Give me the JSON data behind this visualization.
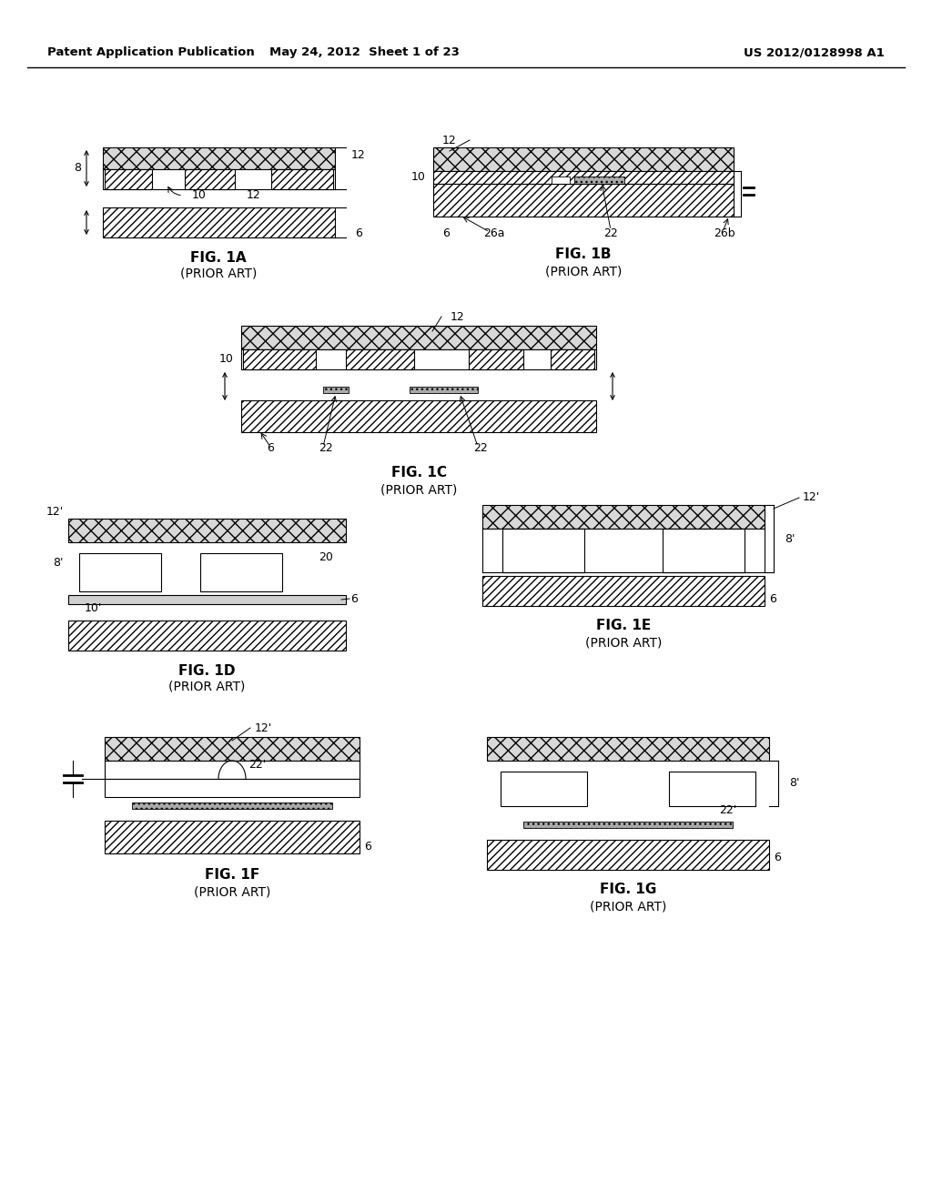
{
  "header_left": "Patent Application Publication",
  "header_mid": "May 24, 2012  Sheet 1 of 23",
  "header_right": "US 2012/0128998 A1",
  "bg": "#ffffff"
}
